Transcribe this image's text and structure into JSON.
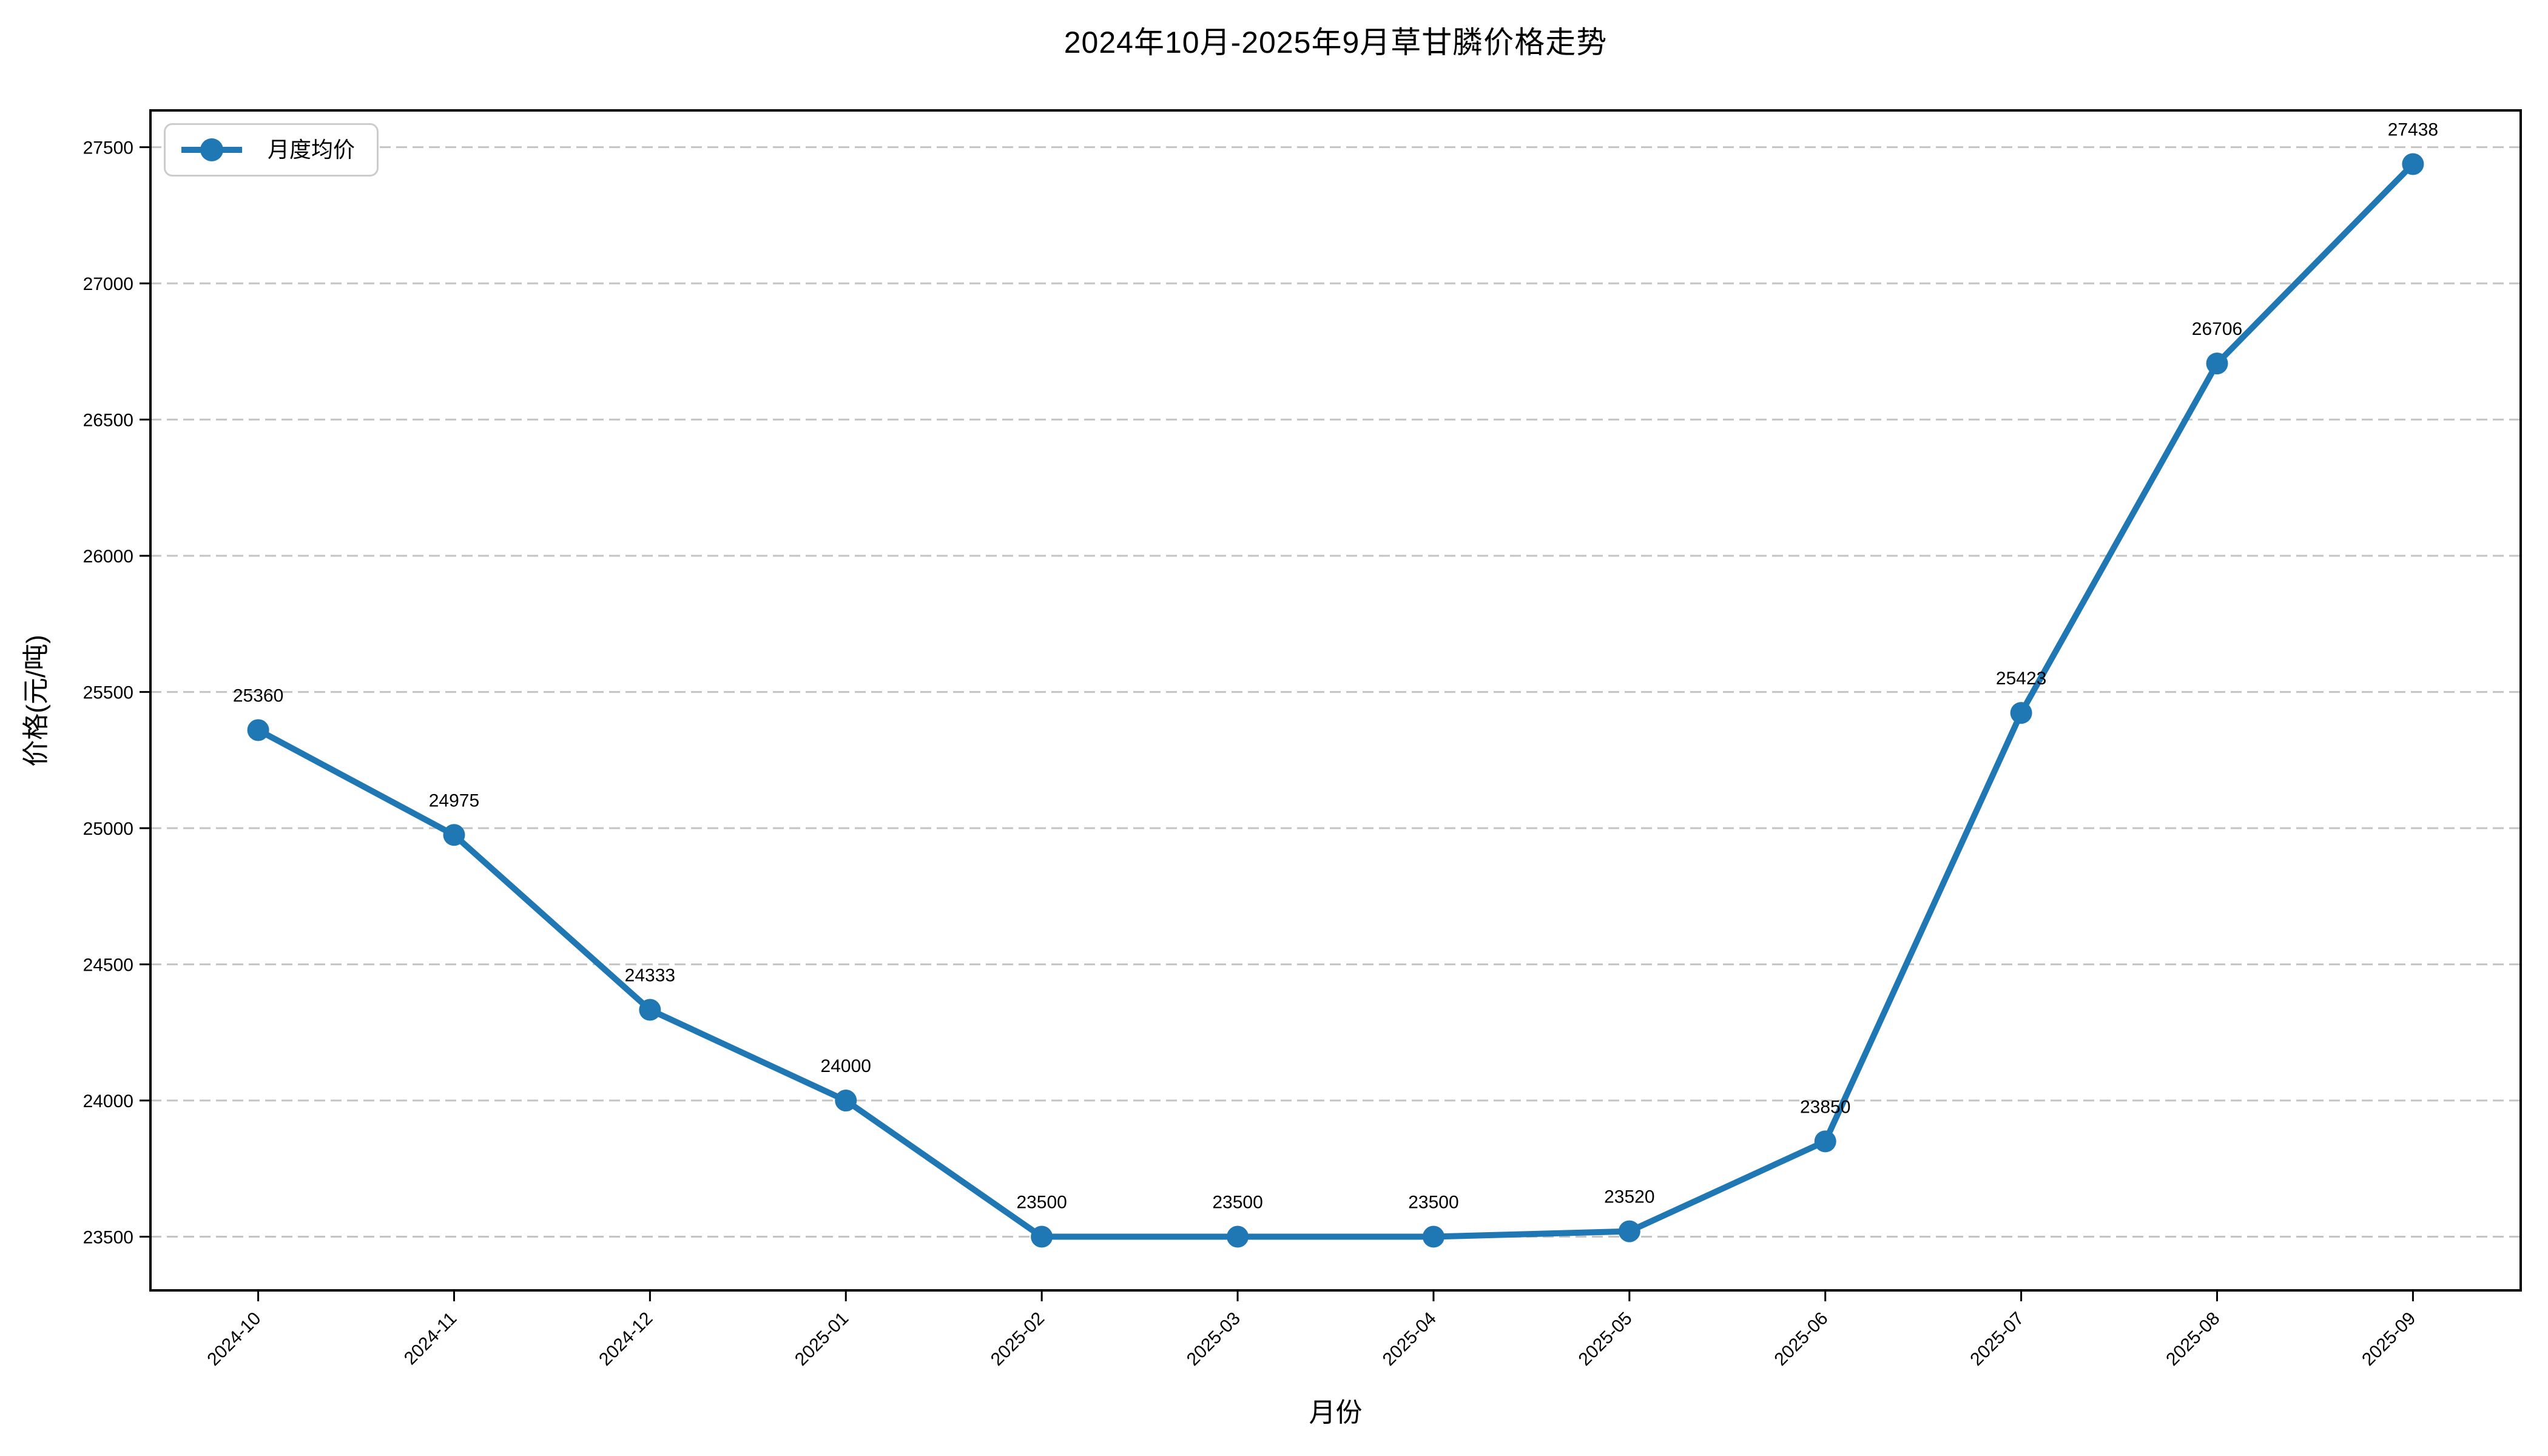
{
  "title": "2024年10月-2025年9月草甘膦价格走势",
  "axes": {
    "xlabel": "月份",
    "ylabel": "价格(元/吨)"
  },
  "legend": {
    "label": "月度均价"
  },
  "chart_data": {
    "type": "line",
    "title": "2024年10月-2025年9月草甘膦价格走势",
    "xlabel": "月份",
    "ylabel": "价格(元/吨)",
    "categories": [
      "2024-10",
      "2024-11",
      "2024-12",
      "2025-01",
      "2025-02",
      "2025-03",
      "2025-04",
      "2025-05",
      "2025-06",
      "2025-07",
      "2025-08",
      "2025-09"
    ],
    "series": [
      {
        "name": "月度均价",
        "values": [
          25360,
          24975,
          24333,
          24000,
          23500,
          23500,
          23500,
          23520,
          23850,
          25423,
          26706,
          27438
        ]
      }
    ],
    "data_labels": [
      "25360",
      "24975",
      "24333",
      "24000",
      "23500",
      "23500",
      "23500",
      "23520",
      "23850",
      "25423",
      "26706",
      "27438"
    ],
    "yticks": [
      23500,
      24000,
      24500,
      25000,
      25500,
      26000,
      26500,
      27000,
      27500
    ],
    "ylim": [
      23303,
      27635
    ],
    "grid": "horizontal-dashed",
    "legend_position": "upper-left",
    "line_color": "#1f77b4",
    "marker": "circle"
  },
  "colors": {
    "line": "#1f77b4",
    "grid": "#c4c4c4",
    "axis": "#000000",
    "legend_border": "#cccccc",
    "background": "#ffffff"
  }
}
